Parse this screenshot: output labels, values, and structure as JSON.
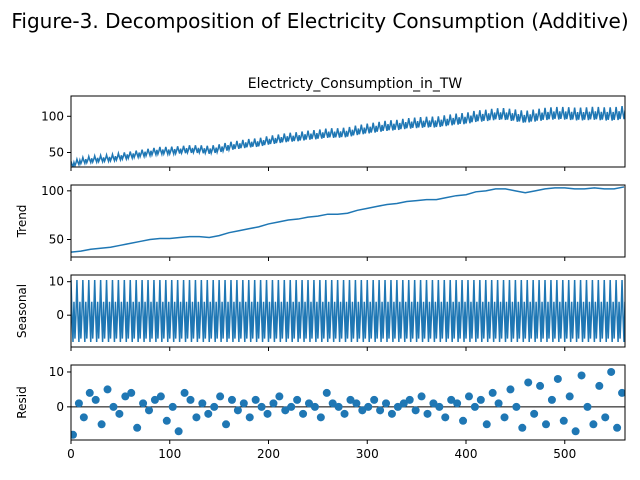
{
  "figure": {
    "suptitle": "Figure-3. Decomposition of Electricity Consumption (Additive)"
  },
  "chart_data": [
    {
      "type": "line",
      "title": "Electricty_Consumption_in_TW",
      "xlabel": "",
      "ylabel": "",
      "xlim": [
        0,
        561
      ],
      "ylim": [
        30,
        128
      ],
      "yticks": [
        50,
        100
      ],
      "xticks": [
        0,
        100,
        200,
        300,
        400,
        500
      ],
      "show_xtick_labels": false,
      "series": [
        {
          "color": "#1f77b4",
          "x": [
            0,
            10,
            20,
            30,
            40,
            50,
            60,
            70,
            80,
            90,
            100,
            110,
            120,
            130,
            140,
            150,
            160,
            170,
            180,
            190,
            200,
            210,
            220,
            230,
            240,
            250,
            260,
            270,
            280,
            290,
            300,
            310,
            320,
            330,
            340,
            350,
            360,
            370,
            380,
            390,
            400,
            410,
            420,
            430,
            440,
            450,
            460,
            470,
            480,
            490,
            500,
            510,
            520,
            530,
            540,
            550,
            560
          ],
          "y": [
            33,
            38,
            40,
            41,
            42,
            44,
            46,
            48,
            50,
            52,
            52,
            53,
            54,
            54,
            53,
            55,
            58,
            60,
            62,
            63,
            66,
            68,
            70,
            71,
            73,
            74,
            76,
            76,
            77,
            80,
            82,
            84,
            86,
            87,
            89,
            90,
            91,
            91,
            93,
            95,
            96,
            99,
            100,
            102,
            102,
            100,
            98,
            100,
            102,
            103,
            103,
            102,
            102,
            103,
            102,
            102,
            104
          ]
        }
      ]
    },
    {
      "type": "line",
      "title": "",
      "xlabel": "",
      "ylabel": "Trend",
      "xlim": [
        0,
        561
      ],
      "ylim": [
        32,
        106
      ],
      "yticks": [
        50,
        100
      ],
      "xticks": [
        0,
        100,
        200,
        300,
        400,
        500
      ],
      "show_xtick_labels": false,
      "series": [
        {
          "color": "#1f77b4",
          "x": [
            0,
            10,
            20,
            30,
            40,
            50,
            60,
            70,
            80,
            90,
            100,
            110,
            120,
            130,
            140,
            150,
            160,
            170,
            180,
            190,
            200,
            210,
            220,
            230,
            240,
            250,
            260,
            270,
            280,
            290,
            300,
            310,
            320,
            330,
            340,
            350,
            360,
            370,
            380,
            390,
            400,
            410,
            420,
            430,
            440,
            450,
            460,
            470,
            480,
            490,
            500,
            510,
            520,
            530,
            540,
            550,
            560
          ],
          "y": [
            37,
            38,
            40,
            41,
            42,
            44,
            46,
            48,
            50,
            51,
            51,
            52,
            53,
            53,
            52,
            54,
            57,
            59,
            61,
            63,
            66,
            68,
            70,
            71,
            73,
            74,
            76,
            76,
            77,
            80,
            82,
            84,
            86,
            87,
            89,
            90,
            91,
            91,
            93,
            95,
            96,
            99,
            100,
            102,
            102,
            100,
            98,
            100,
            102,
            103,
            103,
            102,
            102,
            103,
            102,
            102,
            104
          ]
        }
      ]
    },
    {
      "type": "line",
      "title": "",
      "xlabel": "",
      "ylabel": "Seasonal",
      "xlim": [
        0,
        561
      ],
      "ylim": [
        -9.5,
        12
      ],
      "yticks": [
        0,
        10
      ],
      "xticks": [
        0,
        100,
        200,
        300,
        400,
        500
      ],
      "show_xtick_labels": false,
      "period": 12,
      "series": [
        {
          "color": "#1f77b4",
          "season_values": [
            10.5,
            0,
            -8,
            4,
            -7,
            0,
            10.5,
            0,
            -8,
            4,
            -7,
            0
          ]
        }
      ]
    },
    {
      "type": "scatter",
      "title": "",
      "xlabel": "",
      "ylabel": "Resid",
      "xlim": [
        0,
        561
      ],
      "ylim": [
        -9.5,
        12
      ],
      "yticks": [
        0,
        10
      ],
      "xticks": [
        0,
        100,
        200,
        300,
        400,
        500
      ],
      "show_xtick_labels": true,
      "zero_line": true,
      "series": [
        {
          "color": "#1f77b4",
          "x": [
            2,
            8,
            13,
            19,
            25,
            31,
            37,
            43,
            49,
            55,
            61,
            67,
            73,
            79,
            85,
            91,
            97,
            103,
            109,
            115,
            121,
            127,
            133,
            139,
            145,
            151,
            157,
            163,
            169,
            175,
            181,
            187,
            193,
            199,
            205,
            211,
            217,
            223,
            229,
            235,
            241,
            247,
            253,
            259,
            265,
            271,
            277,
            283,
            289,
            295,
            301,
            307,
            313,
            319,
            325,
            331,
            337,
            343,
            349,
            355,
            361,
            367,
            373,
            379,
            385,
            391,
            397,
            403,
            409,
            415,
            421,
            427,
            433,
            439,
            445,
            451,
            457,
            463,
            469,
            475,
            481,
            487,
            493,
            499,
            505,
            511,
            517,
            523,
            529,
            535,
            541,
            547,
            553,
            558
          ],
          "y": [
            -8,
            1,
            -3,
            4,
            2,
            -5,
            5,
            0,
            -2,
            3,
            4,
            -6,
            1,
            -1,
            2,
            3,
            -4,
            0,
            -7,
            4,
            2,
            -3,
            1,
            -2,
            0,
            3,
            -5,
            2,
            -1,
            1,
            -3,
            2,
            0,
            -2,
            1,
            3,
            -1,
            0,
            2,
            -2,
            1,
            0,
            -3,
            4,
            1,
            0,
            -2,
            2,
            1,
            -1,
            0,
            2,
            -1,
            1,
            -2,
            0,
            1,
            2,
            -1,
            3,
            -2,
            1,
            0,
            -3,
            2,
            1,
            -4,
            3,
            0,
            2,
            -5,
            4,
            1,
            -3,
            5,
            0,
            -6,
            7,
            -2,
            6,
            -5,
            2,
            8,
            -4,
            3,
            -7,
            9,
            0,
            -5,
            6,
            -3,
            10,
            -6,
            4
          ]
        }
      ]
    }
  ]
}
